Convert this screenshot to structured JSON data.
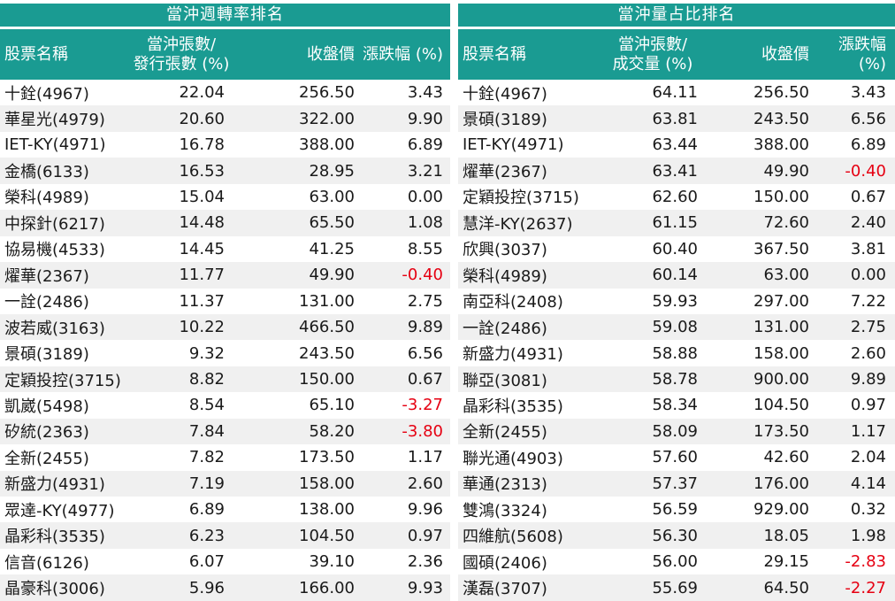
{
  "left": {
    "title": "當沖週轉率排名",
    "headers": {
      "name": "股票名稱",
      "ratio_line1": "當沖張數/",
      "ratio_line2": "發行張數 (%)",
      "price": "收盤價",
      "change": "漲跌幅 (%)"
    },
    "rows": [
      {
        "name": "十銓(4967)",
        "ratio": "22.04",
        "price": "256.50",
        "change": "3.43"
      },
      {
        "name": "華星光(4979)",
        "ratio": "20.60",
        "price": "322.00",
        "change": "9.90"
      },
      {
        "name": "IET-KY(4971)",
        "ratio": "16.78",
        "price": "388.00",
        "change": "6.89"
      },
      {
        "name": "金橋(6133)",
        "ratio": "16.53",
        "price": "28.95",
        "change": "3.21"
      },
      {
        "name": "榮科(4989)",
        "ratio": "15.04",
        "price": "63.00",
        "change": "0.00"
      },
      {
        "name": "中探針(6217)",
        "ratio": "14.48",
        "price": "65.50",
        "change": "1.08"
      },
      {
        "name": "協易機(4533)",
        "ratio": "14.45",
        "price": "41.25",
        "change": "8.55"
      },
      {
        "name": "燿華(2367)",
        "ratio": "11.77",
        "price": "49.90",
        "change": "-0.40"
      },
      {
        "name": "一詮(2486)",
        "ratio": "11.37",
        "price": "131.00",
        "change": "2.75"
      },
      {
        "name": "波若威(3163)",
        "ratio": "10.22",
        "price": "466.50",
        "change": "9.89"
      },
      {
        "name": "景碩(3189)",
        "ratio": "9.32",
        "price": "243.50",
        "change": "6.56"
      },
      {
        "name": "定穎投控(3715)",
        "ratio": "8.82",
        "price": "150.00",
        "change": "0.67"
      },
      {
        "name": "凱崴(5498)",
        "ratio": "8.54",
        "price": "65.10",
        "change": "-3.27"
      },
      {
        "name": "矽統(2363)",
        "ratio": "7.84",
        "price": "58.20",
        "change": "-3.80"
      },
      {
        "name": "全新(2455)",
        "ratio": "7.82",
        "price": "173.50",
        "change": "1.17"
      },
      {
        "name": "新盛力(4931)",
        "ratio": "7.19",
        "price": "158.00",
        "change": "2.60"
      },
      {
        "name": "眾達-KY(4977)",
        "ratio": "6.89",
        "price": "138.00",
        "change": "9.96"
      },
      {
        "name": "晶彩科(3535)",
        "ratio": "6.23",
        "price": "104.50",
        "change": "0.97"
      },
      {
        "name": "信音(6126)",
        "ratio": "6.07",
        "price": "39.10",
        "change": "2.36"
      },
      {
        "name": "晶豪科(3006)",
        "ratio": "5.96",
        "price": "166.00",
        "change": "9.93"
      }
    ]
  },
  "right": {
    "title": "當沖量占比排名",
    "headers": {
      "name": "股票名稱",
      "ratio_line1": "當沖張數/",
      "ratio_line2": "成交量 (%)",
      "price": "收盤價",
      "change": "漲跌幅 (%)"
    },
    "rows": [
      {
        "name": "十銓(4967)",
        "ratio": "64.11",
        "price": "256.50",
        "change": "3.43"
      },
      {
        "name": "景碩(3189)",
        "ratio": "63.81",
        "price": "243.50",
        "change": "6.56"
      },
      {
        "name": "IET-KY(4971)",
        "ratio": "63.44",
        "price": "388.00",
        "change": "6.89"
      },
      {
        "name": "燿華(2367)",
        "ratio": "63.41",
        "price": "49.90",
        "change": "-0.40"
      },
      {
        "name": "定穎投控(3715)",
        "ratio": "62.60",
        "price": "150.00",
        "change": "0.67"
      },
      {
        "name": "慧洋-KY(2637)",
        "ratio": "61.15",
        "price": "72.60",
        "change": "2.40"
      },
      {
        "name": "欣興(3037)",
        "ratio": "60.40",
        "price": "367.50",
        "change": "3.81"
      },
      {
        "name": "榮科(4989)",
        "ratio": "60.14",
        "price": "63.00",
        "change": "0.00"
      },
      {
        "name": "南亞科(2408)",
        "ratio": "59.93",
        "price": "297.00",
        "change": "7.22"
      },
      {
        "name": "一詮(2486)",
        "ratio": "59.08",
        "price": "131.00",
        "change": "2.75"
      },
      {
        "name": "新盛力(4931)",
        "ratio": "58.88",
        "price": "158.00",
        "change": "2.60"
      },
      {
        "name": "聯亞(3081)",
        "ratio": "58.78",
        "price": "900.00",
        "change": "9.89"
      },
      {
        "name": "晶彩科(3535)",
        "ratio": "58.34",
        "price": "104.50",
        "change": "0.97"
      },
      {
        "name": "全新(2455)",
        "ratio": "58.09",
        "price": "173.50",
        "change": "1.17"
      },
      {
        "name": "聯光通(4903)",
        "ratio": "57.60",
        "price": "42.60",
        "change": "2.04"
      },
      {
        "name": "華通(2313)",
        "ratio": "57.37",
        "price": "176.00",
        "change": "4.14"
      },
      {
        "name": "雙鴻(3324)",
        "ratio": "56.59",
        "price": "929.00",
        "change": "0.32"
      },
      {
        "name": "四維航(5608)",
        "ratio": "56.30",
        "price": "18.05",
        "change": "1.98"
      },
      {
        "name": "國碩(2406)",
        "ratio": "56.00",
        "price": "29.15",
        "change": "-2.83"
      },
      {
        "name": "漢磊(3707)",
        "ratio": "55.69",
        "price": "64.50",
        "change": "-2.27"
      }
    ]
  },
  "colors": {
    "header_bg": "#1a9b92",
    "header_text": "#ffffff",
    "negative": "#e60012",
    "stripe": "#f0f0f0"
  }
}
